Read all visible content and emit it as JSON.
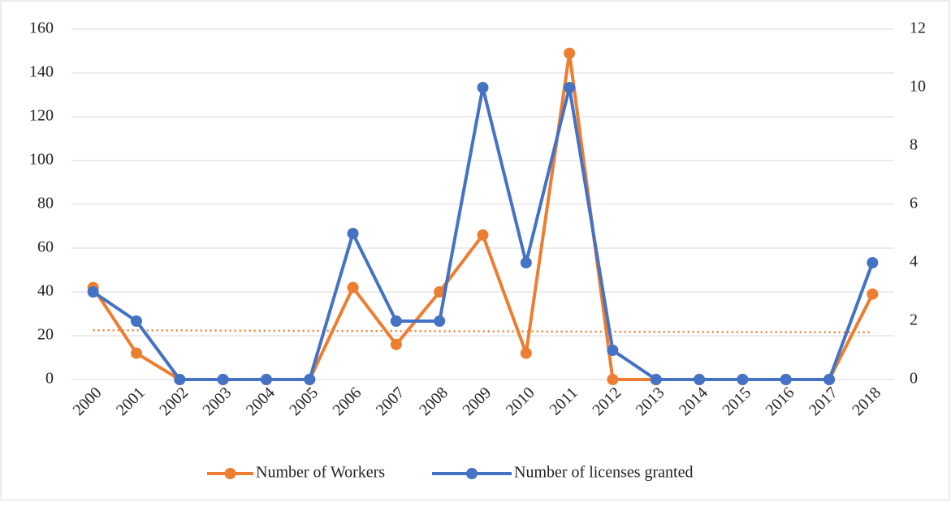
{
  "chart_data": {
    "type": "line",
    "categories": [
      "2000",
      "2001",
      "2002",
      "2003",
      "2004",
      "2005",
      "2006",
      "2007",
      "2008",
      "2009",
      "2010",
      "2011",
      "2012",
      "2013",
      "2014",
      "2015",
      "2016",
      "2017",
      "2018"
    ],
    "series": [
      {
        "name": "Number of Workers",
        "color": "#ed7d31",
        "values": [
          42,
          12,
          0,
          0,
          0,
          0,
          42,
          16,
          40,
          66,
          12,
          149,
          0,
          0,
          0,
          0,
          0,
          0,
          39
        ]
      },
      {
        "name": "Number of licenses granted",
        "color": "#4472c4",
        "axis": "y2",
        "values": [
          3,
          2,
          0,
          0,
          0,
          0,
          5,
          2,
          2,
          10,
          4,
          10,
          1,
          0,
          0,
          0,
          0,
          0,
          4
        ]
      }
    ],
    "trendline": {
      "color": "#ed7d31",
      "start": 22.5,
      "end": 21.5
    },
    "ylim": [
      0,
      160
    ],
    "yticks": [
      0,
      20,
      40,
      60,
      80,
      100,
      120,
      140,
      160
    ],
    "y2lim": [
      0,
      12
    ],
    "y2ticks": [
      0,
      2,
      4,
      6,
      8,
      10,
      12
    ],
    "grid": true,
    "legend": "bottom"
  }
}
